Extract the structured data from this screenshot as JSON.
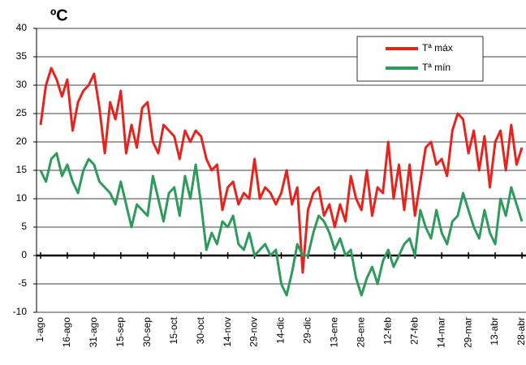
{
  "chart_data": {
    "type": "line",
    "title": "ºC",
    "categories": [
      "1-ago",
      null,
      null,
      null,
      null,
      "16-ago",
      null,
      null,
      null,
      null,
      "31-ago",
      null,
      null,
      null,
      null,
      "15-sep",
      null,
      null,
      null,
      null,
      "30-sep",
      null,
      null,
      null,
      null,
      "15-oct",
      null,
      null,
      null,
      null,
      "30-oct",
      null,
      null,
      null,
      null,
      "14-nov",
      null,
      null,
      null,
      null,
      "29-nov",
      null,
      null,
      null,
      null,
      "14-dic",
      null,
      null,
      null,
      null,
      "29-dic",
      null,
      null,
      null,
      null,
      "13-ene",
      null,
      null,
      null,
      null,
      "28-ene",
      null,
      null,
      null,
      null,
      "12-feb",
      null,
      null,
      null,
      null,
      "27-feb",
      null,
      null,
      null,
      null,
      "14-mar",
      null,
      null,
      null,
      null,
      "29-mar",
      null,
      null,
      null,
      null,
      "13-abr",
      null,
      null,
      null,
      null,
      "28-abr"
    ],
    "series": [
      {
        "name": "Tª máx",
        "color": "#e8221c",
        "values": [
          23,
          30,
          33,
          31,
          28,
          31,
          22,
          27,
          29,
          30,
          32,
          26,
          18,
          27,
          24,
          29,
          18,
          23,
          19,
          26,
          27,
          20,
          18,
          23,
          22,
          21,
          17,
          22,
          20,
          22,
          21,
          17,
          15,
          16,
          8,
          12,
          13,
          9,
          11,
          10,
          17,
          10,
          12,
          11,
          9,
          11,
          15,
          9,
          12,
          -3,
          8,
          11,
          12,
          7,
          9,
          5,
          9,
          6,
          14,
          10,
          8,
          15,
          7,
          12,
          11,
          20,
          10,
          16,
          8,
          16,
          7,
          13,
          19,
          20,
          16,
          17,
          14,
          22,
          25,
          24,
          18,
          22,
          15,
          21,
          12,
          20,
          22,
          15,
          23,
          16,
          19
        ]
      },
      {
        "name": "Tª mín",
        "color": "#2e9a5c",
        "values": [
          15,
          13,
          17,
          18,
          14,
          16,
          13,
          11,
          15,
          17,
          16,
          13,
          12,
          11,
          9,
          13,
          9,
          5,
          9,
          8,
          7,
          14,
          10,
          6,
          11,
          12,
          7,
          14,
          10,
          16,
          9,
          1,
          4,
          2,
          6,
          5,
          7,
          2,
          1,
          4,
          0,
          1,
          2,
          0,
          1,
          -5,
          -7,
          -3,
          2,
          0,
          0,
          4,
          7,
          6,
          4,
          1,
          3,
          0,
          1,
          -4,
          -7,
          -4,
          -2,
          -5,
          -1,
          1,
          -2,
          0,
          2,
          3,
          0,
          8,
          5,
          3,
          8,
          4,
          2,
          6,
          7,
          11,
          8,
          5,
          3,
          8,
          4,
          2,
          10,
          7,
          12,
          9,
          6
        ]
      }
    ],
    "ylim": [
      -10,
      40
    ],
    "yticks": [
      -10,
      -5,
      0,
      5,
      10,
      15,
      20,
      25,
      30,
      35,
      40
    ],
    "grid": true
  }
}
